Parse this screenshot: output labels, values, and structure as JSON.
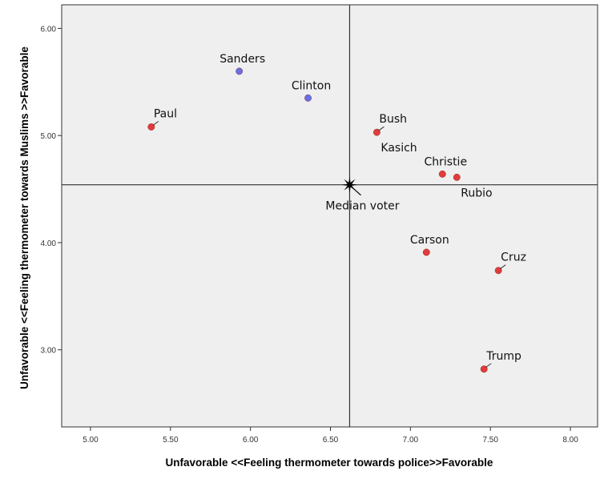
{
  "chart_data": {
    "type": "scatter",
    "xlabel": "Unfavorable <<Feeling thermometer towards police>>Favorable",
    "ylabel": "Unfavorable <<Feeling thermometer towards Muslims >>Favorable",
    "xlim": [
      4.82,
      8.17
    ],
    "ylim": [
      2.28,
      6.22
    ],
    "xticks": [
      5.0,
      5.5,
      6.0,
      6.5,
      7.0,
      7.5,
      8.0
    ],
    "xtick_labels": [
      "5.00",
      "5.50",
      "6.00",
      "6.50",
      "7.00",
      "7.50",
      "8.00"
    ],
    "yticks": [
      3.0,
      4.0,
      5.0,
      6.0
    ],
    "ytick_labels": [
      "3.00",
      "4.00",
      "5.00",
      "6.00"
    ],
    "grid": false,
    "reference_lines": {
      "x": 6.62,
      "y": 4.54
    },
    "median_voter": {
      "label": "Median voter",
      "x": 6.62,
      "y": 4.54
    },
    "colors": {
      "democrat": "#6670e6",
      "republican": "#e03c3c",
      "background": "#efefef"
    },
    "points": [
      {
        "name": "Sanders",
        "x": 5.93,
        "y": 5.6,
        "party": "democrat",
        "label_anchor": "above"
      },
      {
        "name": "Clinton",
        "x": 6.36,
        "y": 5.35,
        "party": "democrat",
        "label_anchor": "above"
      },
      {
        "name": "Paul",
        "x": 5.38,
        "y": 5.08,
        "party": "republican",
        "label_anchor": "above-right"
      },
      {
        "name": "Bush",
        "x": 6.79,
        "y": 5.03,
        "party": "republican",
        "label_anchor": "above-right"
      },
      {
        "name": "Kasich",
        "x": 6.79,
        "y": 5.03,
        "party": "republican",
        "label_anchor": "below-right"
      },
      {
        "name": "Christie",
        "x": 7.2,
        "y": 4.64,
        "party": "republican",
        "label_anchor": "above"
      },
      {
        "name": "Rubio",
        "x": 7.29,
        "y": 4.61,
        "party": "republican",
        "label_anchor": "below-right"
      },
      {
        "name": "Carson",
        "x": 7.1,
        "y": 3.91,
        "party": "republican",
        "label_anchor": "above"
      },
      {
        "name": "Cruz",
        "x": 7.55,
        "y": 3.74,
        "party": "republican",
        "label_anchor": "above-right"
      },
      {
        "name": "Trump",
        "x": 7.46,
        "y": 2.82,
        "party": "republican",
        "label_anchor": "above-right"
      }
    ]
  }
}
